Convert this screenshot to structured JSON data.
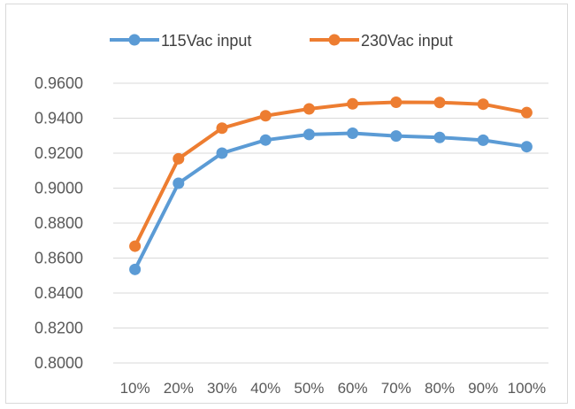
{
  "chart_data": {
    "type": "line",
    "title": "",
    "xlabel": "",
    "ylabel": "",
    "categories": [
      "10%",
      "20%",
      "30%",
      "40%",
      "50%",
      "60%",
      "70%",
      "80%",
      "90%",
      "100%"
    ],
    "ylim": [
      0.8,
      0.96
    ],
    "yticks": [
      "0.8000",
      "0.8200",
      "0.8400",
      "0.8600",
      "0.8800",
      "0.9000",
      "0.9200",
      "0.9400",
      "0.9600"
    ],
    "grid": true,
    "legend_position": "top",
    "series": [
      {
        "name": "115Vac input",
        "color": "#5B9BD5",
        "values": [
          0.8535,
          0.9028,
          0.92,
          0.9275,
          0.9307,
          0.9314,
          0.9298,
          0.929,
          0.9274,
          0.9237
        ]
      },
      {
        "name": "230Vac input",
        "color": "#ED7D31",
        "values": [
          0.8668,
          0.9168,
          0.9343,
          0.9414,
          0.9453,
          0.9482,
          0.9491,
          0.949,
          0.948,
          0.9432
        ]
      }
    ]
  }
}
